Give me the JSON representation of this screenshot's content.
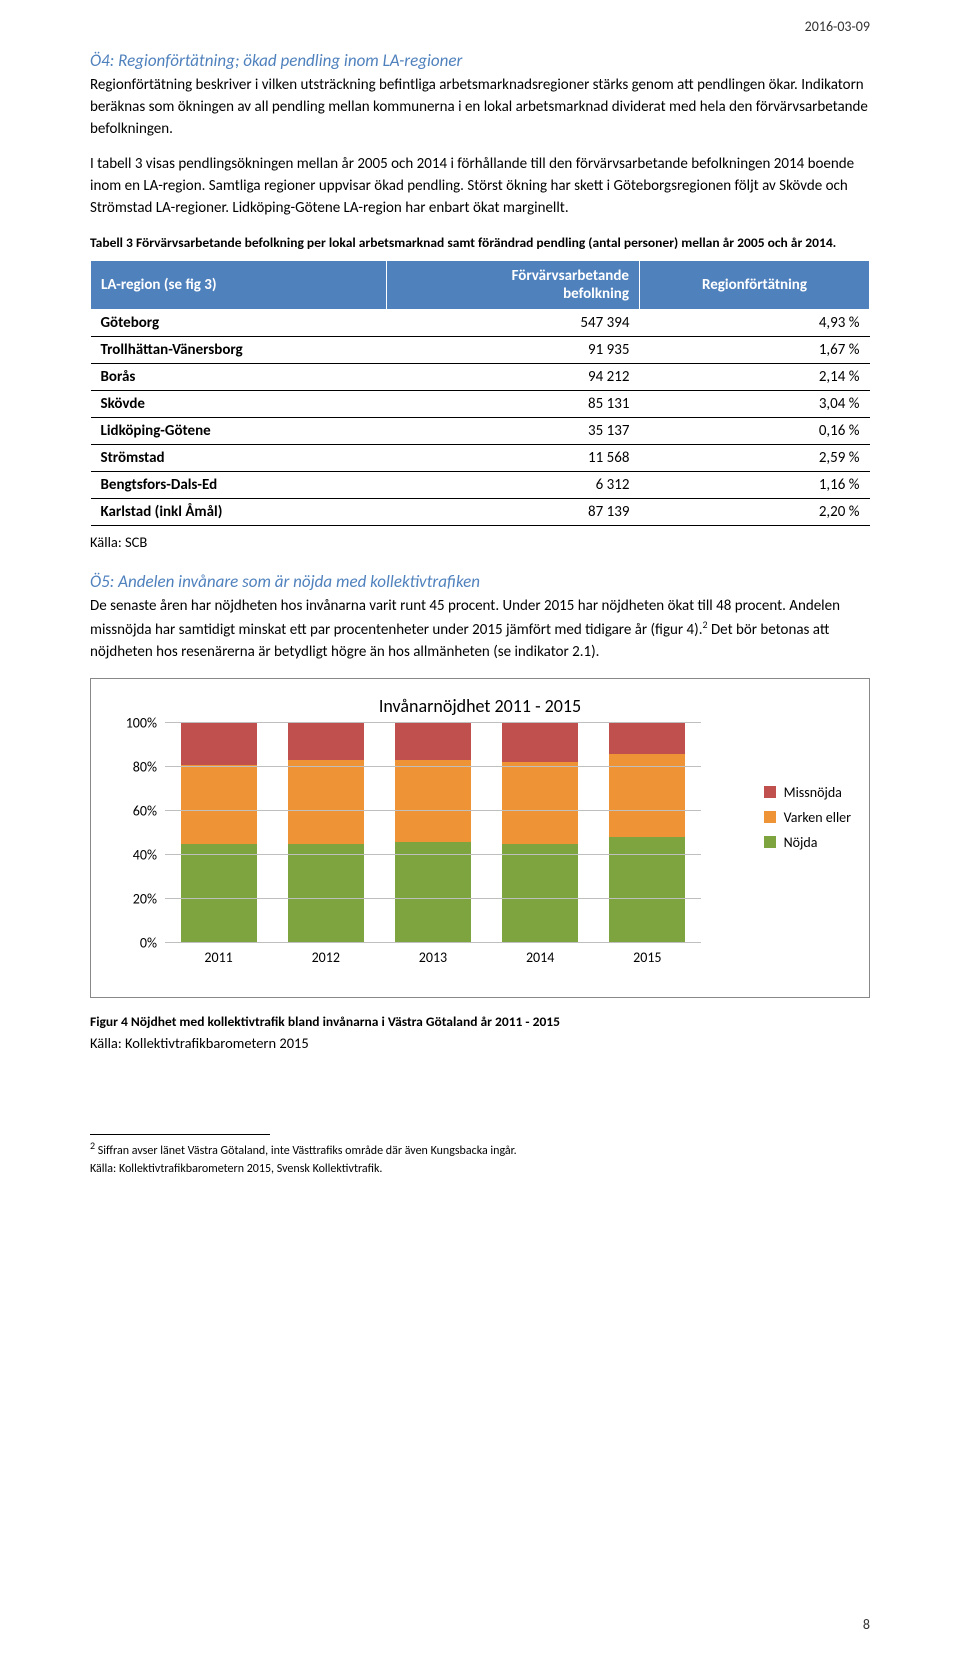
{
  "header": {
    "date": "2016-03-09"
  },
  "page_number": "8",
  "section_o4": {
    "heading": "Ö4: Regionförtätning; ökad pendling inom LA-regioner",
    "para1": "Regionförtätning beskriver i vilken utsträckning befintliga arbetsmarknadsregioner stärks genom att pendlingen ökar. Indikatorn beräknas som ökningen av all pendling mellan kommunerna i en lokal arbetsmarknad dividerat med hela den förvärvsarbetande befolkningen.",
    "para2": "I tabell 3 visas pendlingsökningen mellan år 2005 och 2014 i förhållande till den förvärvsarbetande befolkningen 2014 boende inom en LA-region. Samtliga regioner uppvisar ökad pendling. Störst ökning har skett i Göteborgsregionen följt av Skövde och Strömstad LA-regioner. Lidköping-Götene LA-region har enbart ökat marginellt."
  },
  "table3": {
    "caption": "Tabell 3 Förvärvsarbetande befolkning per lokal arbetsmarknad samt förändrad pendling (antal personer) mellan år 2005 och år 2014.",
    "col1_line1": "LA-region (se fig 3)",
    "col2_line1": "Förvärvsarbetande",
    "col2_line2": "befolkning",
    "col3_line1": "Regionförtätning",
    "rows": [
      {
        "region": "Göteborg",
        "pop": "547 394",
        "fort": "4,93 %"
      },
      {
        "region": "Trollhättan-Vänersborg",
        "pop": "91 935",
        "fort": "1,67 %"
      },
      {
        "region": "Borås",
        "pop": "94 212",
        "fort": "2,14 %"
      },
      {
        "region": "Skövde",
        "pop": "85 131",
        "fort": "3,04 %"
      },
      {
        "region": "Lidköping-Götene",
        "pop": "35 137",
        "fort": "0,16 %"
      },
      {
        "region": "Strömstad",
        "pop": "11 568",
        "fort": "2,59 %"
      },
      {
        "region": "Bengtsfors-Dals-Ed",
        "pop": "6 312",
        "fort": "1,16 %"
      },
      {
        "region": "Karlstad (inkl Åmål)",
        "pop": "87 139",
        "fort": "2,20 %"
      }
    ],
    "source": "Källa: SCB"
  },
  "section_o5": {
    "heading": "Ö5: Andelen invånare som är nöjda med kollektivtrafiken",
    "para": "De senaste åren har nöjdheten hos invånarna varit runt 45 procent. Under 2015 har nöjdheten ökat till 48 procent. Andelen missnöjda har samtidigt minskat ett par procentenheter under 2015 jämfört med tidigare år (figur 4).",
    "para_after_fn": " Det bör betonas att nöjdheten hos resenärerna är betydligt högre än hos allmänheten (se indikator 2.1).",
    "footnote_mark": "2"
  },
  "chart": {
    "title": "Invånarnöjdhet 2011 - 2015",
    "ylim": [
      0,
      100
    ],
    "ytick_step": 20,
    "yticks": [
      "0%",
      "20%",
      "40%",
      "60%",
      "80%",
      "100%"
    ],
    "categories": [
      "2011",
      "2012",
      "2013",
      "2014",
      "2015"
    ],
    "series": {
      "nojda": {
        "label": "Nöjda",
        "color": "#7da43f",
        "values": [
          45,
          45,
          46,
          45,
          48
        ]
      },
      "varken": {
        "label": "Varken eller",
        "color": "#ee9336",
        "values": [
          36,
          38,
          37,
          37,
          38
        ]
      },
      "missnojda": {
        "label": "Missnöjda",
        "color": "#c0504d",
        "values": [
          19,
          17,
          17,
          18,
          14
        ]
      }
    },
    "legend_order": [
      "missnojda",
      "varken",
      "nojda"
    ],
    "grid_color": "#bfbfbf",
    "background_color": "#ffffff"
  },
  "figure4": {
    "caption": "Figur 4 Nöjdhet med kollektivtrafik bland invånarna i Västra Götaland år 2011 - 2015",
    "source": "Källa: Kollektivtrafikbarometern 2015"
  },
  "footnote": {
    "num": "2",
    "text": " Siffran avser länet Västra Götaland, inte Västtrafiks område där även Kungsbacka ingår.",
    "source": "Källa: Kollektivtrafikbarometern 2015, Svensk Kollektivtrafik."
  }
}
